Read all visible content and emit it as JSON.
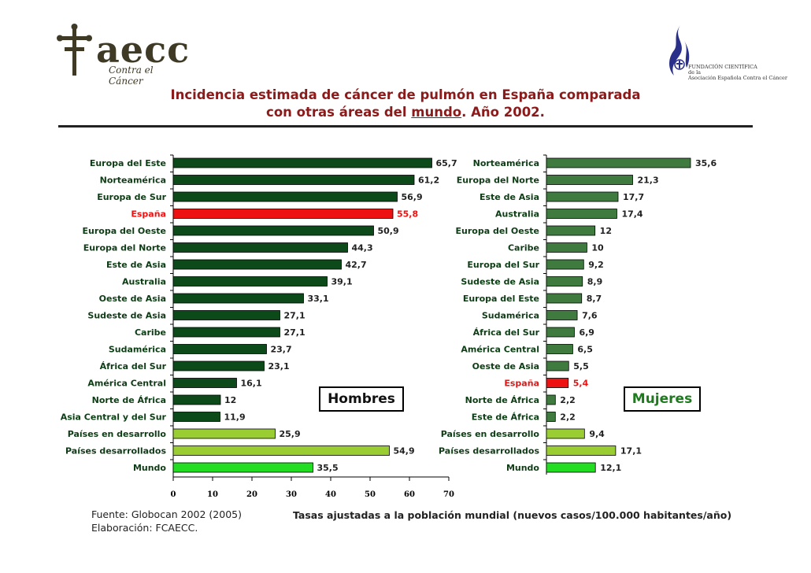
{
  "header": {
    "left_logo_text": "aecc",
    "left_logo_sub": "Contra el Cáncer",
    "right_logo_lines": [
      "FUNDACIÓN CIENTÍFICA",
      "de la",
      "Asociación Española Contra el Cáncer"
    ],
    "title_line1": "Incidencia estimada de cáncer de pulmón en España comparada",
    "title_line2_pre": "con otras áreas del ",
    "title_line2_link": "mundo",
    "title_line2_post": ". Año 2002."
  },
  "colors": {
    "dark_green": "#0d4a1a",
    "mid_green": "#3f7a3f",
    "light_green": "#9acd32",
    "bright_green": "#22dd22",
    "highlight_red": "#ee1111"
  },
  "chart_data": [
    {
      "type": "bar",
      "orientation": "horizontal",
      "label": "Hombres",
      "xlim": [
        0,
        70
      ],
      "xticks": [
        0,
        10,
        20,
        30,
        40,
        50,
        60,
        70
      ],
      "categories": [
        "Europa del Este",
        "Norteamérica",
        "Europa de Sur",
        "España",
        "Europa del Oeste",
        "Europa del Norte",
        "Este de Asia",
        "Australia",
        "Oeste de Asia",
        "Sudeste de Asia",
        "Caribe",
        "Sudamérica",
        "África del Sur",
        "América Central",
        "Norte de África",
        "Asia Central y del Sur",
        "Países en desarrollo",
        "Países desarrollados",
        "Mundo"
      ],
      "values": [
        65.7,
        61.2,
        56.9,
        55.8,
        50.9,
        44.3,
        42.7,
        39.1,
        33.1,
        27.1,
        27.1,
        23.7,
        23.1,
        16.1,
        12,
        11.9,
        25.9,
        54.9,
        35.5
      ],
      "value_labels": [
        "65,7",
        "61,2",
        "56,9",
        "55,8",
        "50,9",
        "44,3",
        "42,7",
        "39,1",
        "33,1",
        "27,1",
        "27,1",
        "23,7",
        "23,1",
        "16,1",
        "12",
        "11,9",
        "25,9",
        "54,9",
        "35,5"
      ],
      "bar_colors": [
        "dark",
        "dark",
        "dark",
        "red",
        "dark",
        "dark",
        "dark",
        "dark",
        "dark",
        "dark",
        "dark",
        "dark",
        "dark",
        "dark",
        "dark",
        "dark",
        "light",
        "light",
        "bright"
      ]
    },
    {
      "type": "bar",
      "orientation": "horizontal",
      "label": "Mujeres",
      "categories": [
        "Norteamérica",
        "Europa del Norte",
        "Este de Asia",
        "Australia",
        "Europa del Oeste",
        "Caribe",
        "Europa del Sur",
        "Sudeste de Asia",
        "Europa del Este",
        "Sudamérica",
        "África del Sur",
        "América Central",
        "Oeste de Asia",
        "España",
        "Norte de África",
        "Este de África",
        "Países en desarrollo",
        "Países desarrollados",
        "Mundo"
      ],
      "values": [
        35.6,
        21.3,
        17.7,
        17.4,
        12,
        10,
        9.2,
        8.9,
        8.7,
        7.6,
        6.9,
        6.5,
        5.5,
        5.4,
        2.2,
        2.2,
        9.4,
        17.1,
        12.1
      ],
      "value_labels": [
        "35,6",
        "21,3",
        "17,7",
        "17,4",
        "12",
        "10",
        "9,2",
        "8,9",
        "8,7",
        "7,6",
        "6,9",
        "6,5",
        "5,5",
        "5,4",
        "2,2",
        "2,2",
        "9,4",
        "17,1",
        "12,1"
      ],
      "bar_colors": [
        "mid",
        "mid",
        "mid",
        "mid",
        "mid",
        "mid",
        "mid",
        "mid",
        "mid",
        "mid",
        "mid",
        "mid",
        "mid",
        "red",
        "mid",
        "mid",
        "light",
        "light",
        "bright"
      ]
    }
  ],
  "footer": {
    "source": "Fuente: Globocan 2002 (2005)",
    "elaboration": "Elaboración: FCAECC.",
    "note": "Tasas ajustadas a la población mundial (nuevos casos/100.000 habitantes/año)"
  }
}
